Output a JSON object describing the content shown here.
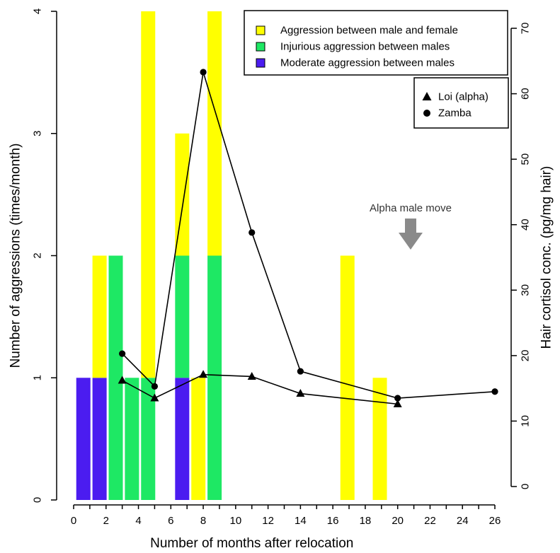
{
  "chart_data": {
    "type": "bar",
    "x_axis": {
      "label": "Number of months after relocation",
      "ticks": [
        0,
        2,
        4,
        6,
        8,
        10,
        12,
        14,
        16,
        18,
        20,
        22,
        24,
        26
      ]
    },
    "y_axis_left": {
      "label": "Number of aggressions (times/month)",
      "range": [
        0,
        4
      ],
      "ticks": [
        0,
        1,
        2,
        3,
        4
      ]
    },
    "y_axis_right": {
      "label": "Hair cortisol conc. (pg/mg hair)",
      "range": [
        0,
        70
      ],
      "ticks": [
        0,
        10,
        20,
        30,
        40,
        50,
        60,
        70
      ]
    },
    "bar_series": [
      {
        "name": "Moderate aggression between males",
        "color": "#4b1cf0",
        "data": [
          {
            "x": 0.6,
            "value": 1
          },
          {
            "x": 1.6,
            "value": 1
          },
          {
            "x": 6.7,
            "value": 1
          }
        ]
      },
      {
        "name": "Injurious aggression between males",
        "color": "#1ee864",
        "data": [
          {
            "x": 2.6,
            "value": 2
          },
          {
            "x": 3.6,
            "value": 1
          },
          {
            "x": 4.6,
            "value": 1
          },
          {
            "x": 6.7,
            "value": 1
          },
          {
            "x": 8.7,
            "value": 2
          }
        ]
      },
      {
        "name": "Aggression between male and female",
        "color": "#ffff00",
        "data": [
          {
            "x": 1.6,
            "value": 1
          },
          {
            "x": 4.6,
            "value": 3
          },
          {
            "x": 6.7,
            "value": 1
          },
          {
            "x": 7.7,
            "value": 1
          },
          {
            "x": 8.7,
            "value": 2
          },
          {
            "x": 16.9,
            "value": 2
          },
          {
            "x": 18.9,
            "value": 1
          }
        ]
      }
    ],
    "line_series": [
      {
        "name": "Loi (alpha)",
        "marker": "triangle",
        "points": [
          {
            "x": 3,
            "y": 16.2
          },
          {
            "x": 5,
            "y": 13.5
          },
          {
            "x": 8,
            "y": 17.1
          },
          {
            "x": 11,
            "y": 16.8
          },
          {
            "x": 14,
            "y": 14.2
          },
          {
            "x": 20,
            "y": 12.6
          }
        ]
      },
      {
        "name": "Zamba",
        "marker": "circle",
        "points": [
          {
            "x": 3,
            "y": 20.3
          },
          {
            "x": 5,
            "y": 15.3
          },
          {
            "x": 8,
            "y": 63.3
          },
          {
            "x": 11,
            "y": 38.8
          },
          {
            "x": 14,
            "y": 17.6
          },
          {
            "x": 20,
            "y": 13.5
          },
          {
            "x": 26,
            "y": 14.5
          }
        ]
      }
    ],
    "annotation": {
      "text": "Alpha male move",
      "x": 20.8
    },
    "legend_bars_position": "top-right",
    "legend_lines_position": "right",
    "grid": false
  }
}
